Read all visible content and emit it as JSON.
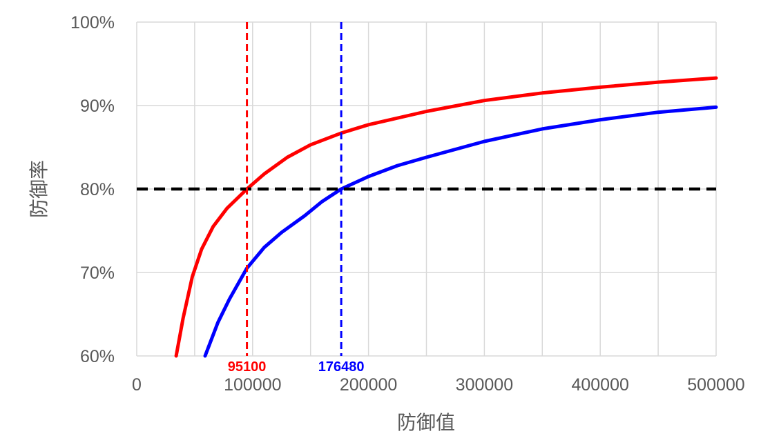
{
  "chart_data": {
    "type": "line",
    "title": "",
    "xlabel": "防御值",
    "ylabel": "防御率",
    "xlim": [
      0,
      500000
    ],
    "ylim": [
      0.6,
      1.0
    ],
    "x_ticks": [
      0,
      100000,
      200000,
      300000,
      400000,
      500000
    ],
    "x_tick_labels": [
      "0",
      "100000",
      "200000",
      "300000",
      "400000",
      "500000"
    ],
    "y_ticks": [
      0.6,
      0.7,
      0.8,
      0.9,
      1.0
    ],
    "y_tick_labels": [
      "60%",
      "70%",
      "80%",
      "90%",
      "100%"
    ],
    "grid": true,
    "legend": "none",
    "series": [
      {
        "color": "#ff0000",
        "x": [
          34000,
          40000,
          48000,
          56000,
          66000,
          78000,
          95100,
          110000,
          130000,
          150000,
          176480,
          200000,
          250000,
          300000,
          350000,
          400000,
          450000,
          500000
        ],
        "y": [
          0.6,
          0.645,
          0.695,
          0.728,
          0.755,
          0.777,
          0.8,
          0.818,
          0.838,
          0.853,
          0.867,
          0.877,
          0.893,
          0.906,
          0.915,
          0.922,
          0.928,
          0.933
        ]
      },
      {
        "color": "#0000ff",
        "x": [
          59000,
          70000,
          80000,
          95000,
          110000,
          125000,
          145000,
          160000,
          176480,
          200000,
          225000,
          250000,
          300000,
          350000,
          400000,
          450000,
          500000
        ],
        "y": [
          0.6,
          0.64,
          0.668,
          0.705,
          0.73,
          0.748,
          0.768,
          0.785,
          0.8,
          0.815,
          0.828,
          0.838,
          0.857,
          0.872,
          0.883,
          0.892,
          0.898
        ]
      }
    ],
    "reference_lines": [
      {
        "orientation": "horizontal",
        "value": 0.8,
        "color": "#000000"
      },
      {
        "orientation": "vertical",
        "value": 95100,
        "color": "#ff0000",
        "label": "95100"
      },
      {
        "orientation": "vertical",
        "value": 176480,
        "color": "#0000ff",
        "label": "176480"
      }
    ]
  }
}
